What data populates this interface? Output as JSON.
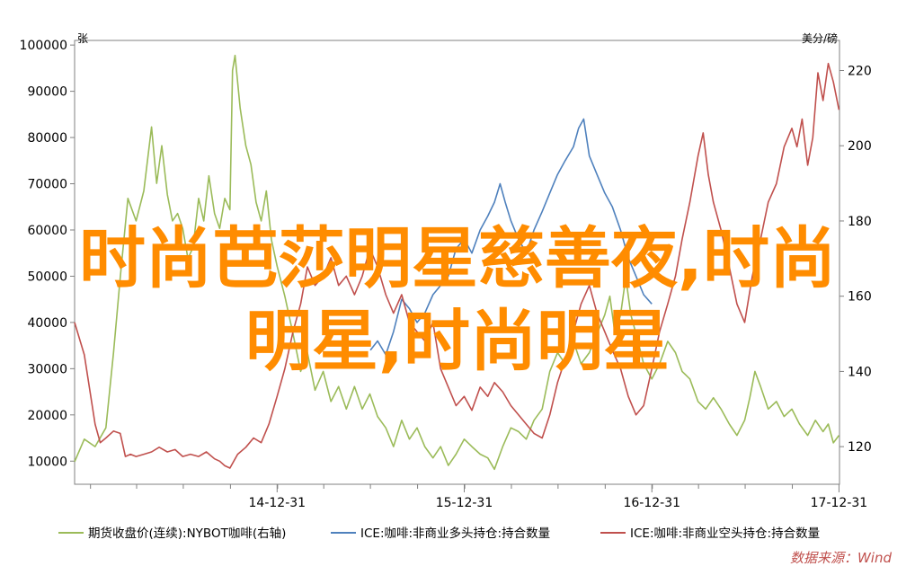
{
  "overlay": {
    "line1": "时尚芭莎明星慈善夜,时尚",
    "line2": "明星,时尚明星"
  },
  "source": "数据来源：Wind",
  "colors": {
    "green": "#9bbb59",
    "blue": "#4f81bd",
    "red": "#c0504d",
    "overlay": "#ff8c00",
    "source": "#c0504d"
  },
  "chart_data": {
    "type": "line",
    "title": "",
    "left_axis": {
      "unit": "张",
      "ticks": [
        "100000",
        "90000",
        "80000",
        "70000",
        "60000",
        "50000",
        "40000",
        "30000",
        "20000",
        "10000"
      ],
      "range": [
        5000,
        101000
      ]
    },
    "right_axis": {
      "unit": "美分/磅",
      "ticks": [
        "220",
        "200",
        "180",
        "160",
        "140",
        "120"
      ],
      "range": [
        110,
        228
      ]
    },
    "x_axis": {
      "tick_labels": [
        "14-12-31",
        "15-12-31",
        "16-12-31",
        "17-12-31"
      ],
      "start": "2013-12-01",
      "end": "2018-01-01"
    },
    "legend_position": "bottom",
    "grid": false,
    "series": [
      {
        "name": "期货收盘价(连续):NYBOT咖啡(右轴)",
        "axis": "right",
        "color": "#9bbb59",
        "points": [
          [
            "2013-12-01",
            116
          ],
          [
            "2013-12-20",
            122
          ],
          [
            "2014-01-10",
            120
          ],
          [
            "2014-01-31",
            125
          ],
          [
            "2014-02-15",
            145
          ],
          [
            "2014-02-28",
            165
          ],
          [
            "2014-03-15",
            186
          ],
          [
            "2014-03-31",
            180
          ],
          [
            "2014-04-15",
            188
          ],
          [
            "2014-04-30",
            205
          ],
          [
            "2014-05-10",
            190
          ],
          [
            "2014-05-20",
            200
          ],
          [
            "2014-05-31",
            187
          ],
          [
            "2014-06-10",
            180
          ],
          [
            "2014-06-20",
            182
          ],
          [
            "2014-06-30",
            178
          ],
          [
            "2014-07-10",
            170
          ],
          [
            "2014-07-20",
            173
          ],
          [
            "2014-07-31",
            186
          ],
          [
            "2014-08-10",
            180
          ],
          [
            "2014-08-20",
            192
          ],
          [
            "2014-08-31",
            182
          ],
          [
            "2014-09-10",
            178
          ],
          [
            "2014-09-20",
            186
          ],
          [
            "2014-09-30",
            183
          ],
          [
            "2014-10-05",
            220
          ],
          [
            "2014-10-10",
            224
          ],
          [
            "2014-10-20",
            210
          ],
          [
            "2014-10-31",
            200
          ],
          [
            "2014-11-10",
            195
          ],
          [
            "2014-11-20",
            185
          ],
          [
            "2014-11-30",
            180
          ],
          [
            "2014-12-10",
            188
          ],
          [
            "2014-12-20",
            175
          ],
          [
            "2014-12-31",
            168
          ],
          [
            "2015-01-15",
            160
          ],
          [
            "2015-01-31",
            150
          ],
          [
            "2015-02-15",
            140
          ],
          [
            "2015-02-28",
            145
          ],
          [
            "2015-03-15",
            135
          ],
          [
            "2015-03-31",
            140
          ],
          [
            "2015-04-15",
            132
          ],
          [
            "2015-04-30",
            136
          ],
          [
            "2015-05-15",
            130
          ],
          [
            "2015-05-31",
            136
          ],
          [
            "2015-06-15",
            130
          ],
          [
            "2015-06-30",
            134
          ],
          [
            "2015-07-15",
            128
          ],
          [
            "2015-07-31",
            125
          ],
          [
            "2015-08-15",
            120
          ],
          [
            "2015-08-31",
            127
          ],
          [
            "2015-09-15",
            122
          ],
          [
            "2015-09-30",
            125
          ],
          [
            "2015-10-15",
            120
          ],
          [
            "2015-10-31",
            117
          ],
          [
            "2015-11-15",
            120
          ],
          [
            "2015-11-30",
            115
          ],
          [
            "2015-12-15",
            118
          ],
          [
            "2015-12-31",
            122
          ],
          [
            "2016-01-15",
            120
          ],
          [
            "2016-01-31",
            118
          ],
          [
            "2016-02-15",
            117
          ],
          [
            "2016-02-28",
            114
          ],
          [
            "2016-03-15",
            120
          ],
          [
            "2016-03-31",
            125
          ],
          [
            "2016-04-15",
            124
          ],
          [
            "2016-04-30",
            122
          ],
          [
            "2016-05-15",
            127
          ],
          [
            "2016-05-31",
            130
          ],
          [
            "2016-06-15",
            140
          ],
          [
            "2016-06-30",
            145
          ],
          [
            "2016-07-15",
            142
          ],
          [
            "2016-07-31",
            148
          ],
          [
            "2016-08-15",
            142
          ],
          [
            "2016-08-31",
            145
          ],
          [
            "2016-09-15",
            150
          ],
          [
            "2016-09-30",
            155
          ],
          [
            "2016-10-10",
            160
          ],
          [
            "2016-10-20",
            150
          ],
          [
            "2016-10-31",
            155
          ],
          [
            "2016-11-10",
            165
          ],
          [
            "2016-11-20",
            155
          ],
          [
            "2016-11-30",
            150
          ],
          [
            "2016-12-15",
            142
          ],
          [
            "2016-12-31",
            138
          ],
          [
            "2017-01-15",
            142
          ],
          [
            "2017-01-31",
            148
          ],
          [
            "2017-02-15",
            145
          ],
          [
            "2017-02-28",
            140
          ],
          [
            "2017-03-15",
            138
          ],
          [
            "2017-03-31",
            132
          ],
          [
            "2017-04-15",
            130
          ],
          [
            "2017-04-30",
            133
          ],
          [
            "2017-05-15",
            130
          ],
          [
            "2017-05-31",
            126
          ],
          [
            "2017-06-15",
            123
          ],
          [
            "2017-06-30",
            127
          ],
          [
            "2017-07-10",
            133
          ],
          [
            "2017-07-20",
            140
          ],
          [
            "2017-07-31",
            136
          ],
          [
            "2017-08-15",
            130
          ],
          [
            "2017-08-31",
            132
          ],
          [
            "2017-09-15",
            128
          ],
          [
            "2017-09-30",
            130
          ],
          [
            "2017-10-15",
            126
          ],
          [
            "2017-10-31",
            123
          ],
          [
            "2017-11-15",
            127
          ],
          [
            "2017-11-30",
            124
          ],
          [
            "2017-12-10",
            126
          ],
          [
            "2017-12-20",
            121
          ],
          [
            "2017-12-31",
            123
          ]
        ]
      },
      {
        "name": "ICE:咖啡:非商业多头持仓:持合数量",
        "axis": "left",
        "color": "#4f81bd",
        "points": [
          [
            "2015-07-01",
            34000
          ],
          [
            "2015-07-15",
            36000
          ],
          [
            "2015-07-31",
            33000
          ],
          [
            "2015-08-15",
            38000
          ],
          [
            "2015-08-31",
            45000
          ],
          [
            "2015-09-15",
            43000
          ],
          [
            "2015-09-30",
            40000
          ],
          [
            "2015-10-15",
            42000
          ],
          [
            "2015-10-31",
            46000
          ],
          [
            "2015-11-15",
            48000
          ],
          [
            "2015-11-30",
            50000
          ],
          [
            "2015-12-15",
            56000
          ],
          [
            "2015-12-31",
            58000
          ],
          [
            "2016-01-15",
            55000
          ],
          [
            "2016-01-31",
            60000
          ],
          [
            "2016-02-15",
            63000
          ],
          [
            "2016-02-28",
            66000
          ],
          [
            "2016-03-10",
            70000
          ],
          [
            "2016-03-20",
            66000
          ],
          [
            "2016-03-31",
            62000
          ],
          [
            "2016-04-15",
            58000
          ],
          [
            "2016-04-30",
            55000
          ],
          [
            "2016-05-15",
            60000
          ],
          [
            "2016-05-31",
            64000
          ],
          [
            "2016-06-15",
            68000
          ],
          [
            "2016-06-30",
            72000
          ],
          [
            "2016-07-15",
            75000
          ],
          [
            "2016-07-31",
            78000
          ],
          [
            "2016-08-10",
            82000
          ],
          [
            "2016-08-20",
            84000
          ],
          [
            "2016-08-31",
            76000
          ],
          [
            "2016-09-15",
            72000
          ],
          [
            "2016-09-30",
            68000
          ],
          [
            "2016-10-15",
            65000
          ],
          [
            "2016-10-31",
            60000
          ],
          [
            "2016-11-15",
            54000
          ],
          [
            "2016-11-30",
            50000
          ],
          [
            "2016-12-15",
            46000
          ],
          [
            "2016-12-31",
            44000
          ]
        ]
      },
      {
        "name": "ICE:咖啡:非商业空头持仓:持合数量",
        "axis": "left",
        "color": "#c0504d",
        "points": [
          [
            "2013-12-01",
            40000
          ],
          [
            "2013-12-20",
            33000
          ],
          [
            "2014-01-10",
            18000
          ],
          [
            "2014-01-20",
            14000
          ],
          [
            "2014-01-31",
            15000
          ],
          [
            "2014-02-15",
            16500
          ],
          [
            "2014-02-28",
            16000
          ],
          [
            "2014-03-10",
            11000
          ],
          [
            "2014-03-20",
            11500
          ],
          [
            "2014-03-31",
            11000
          ],
          [
            "2014-04-15",
            11500
          ],
          [
            "2014-04-30",
            12000
          ],
          [
            "2014-05-15",
            13000
          ],
          [
            "2014-05-31",
            12000
          ],
          [
            "2014-06-15",
            12500
          ],
          [
            "2014-06-30",
            11000
          ],
          [
            "2014-07-15",
            11500
          ],
          [
            "2014-07-31",
            11000
          ],
          [
            "2014-08-15",
            12000
          ],
          [
            "2014-08-31",
            10500
          ],
          [
            "2014-09-10",
            10000
          ],
          [
            "2014-09-20",
            9000
          ],
          [
            "2014-09-30",
            8500
          ],
          [
            "2014-10-15",
            11500
          ],
          [
            "2014-10-31",
            13000
          ],
          [
            "2014-11-15",
            15000
          ],
          [
            "2014-11-30",
            14000
          ],
          [
            "2014-12-15",
            18000
          ],
          [
            "2014-12-31",
            24000
          ],
          [
            "2015-01-15",
            30000
          ],
          [
            "2015-01-31",
            38000
          ],
          [
            "2015-02-15",
            44000
          ],
          [
            "2015-02-28",
            52000
          ],
          [
            "2015-03-15",
            48000
          ],
          [
            "2015-03-31",
            50000
          ],
          [
            "2015-04-15",
            54000
          ],
          [
            "2015-04-30",
            48000
          ],
          [
            "2015-05-15",
            50000
          ],
          [
            "2015-05-31",
            46000
          ],
          [
            "2015-06-15",
            50000
          ],
          [
            "2015-06-30",
            56000
          ],
          [
            "2015-07-15",
            52000
          ],
          [
            "2015-07-31",
            46000
          ],
          [
            "2015-08-15",
            42000
          ],
          [
            "2015-08-31",
            46000
          ],
          [
            "2015-09-15",
            40000
          ],
          [
            "2015-09-30",
            38000
          ],
          [
            "2015-10-15",
            36000
          ],
          [
            "2015-10-31",
            40000
          ],
          [
            "2015-11-15",
            30000
          ],
          [
            "2015-11-30",
            26000
          ],
          [
            "2015-12-15",
            22000
          ],
          [
            "2015-12-31",
            24000
          ],
          [
            "2016-01-15",
            21000
          ],
          [
            "2016-01-31",
            26000
          ],
          [
            "2016-02-15",
            24000
          ],
          [
            "2016-02-28",
            27000
          ],
          [
            "2016-03-15",
            25000
          ],
          [
            "2016-03-31",
            22000
          ],
          [
            "2016-04-15",
            20000
          ],
          [
            "2016-04-30",
            18000
          ],
          [
            "2016-05-15",
            16000
          ],
          [
            "2016-05-31",
            15000
          ],
          [
            "2016-06-15",
            20000
          ],
          [
            "2016-06-30",
            27000
          ],
          [
            "2016-07-15",
            32000
          ],
          [
            "2016-07-31",
            38000
          ],
          [
            "2016-08-15",
            44000
          ],
          [
            "2016-08-31",
            48000
          ],
          [
            "2016-09-15",
            42000
          ],
          [
            "2016-09-30",
            38000
          ],
          [
            "2016-10-15",
            34000
          ],
          [
            "2016-10-31",
            30000
          ],
          [
            "2016-11-15",
            24000
          ],
          [
            "2016-11-30",
            20000
          ],
          [
            "2016-12-15",
            22000
          ],
          [
            "2016-12-31",
            30000
          ],
          [
            "2017-01-15",
            38000
          ],
          [
            "2017-01-31",
            44000
          ],
          [
            "2017-02-15",
            50000
          ],
          [
            "2017-02-28",
            58000
          ],
          [
            "2017-03-15",
            66000
          ],
          [
            "2017-03-31",
            76000
          ],
          [
            "2017-04-10",
            81000
          ],
          [
            "2017-04-20",
            72000
          ],
          [
            "2017-04-30",
            66000
          ],
          [
            "2017-05-15",
            60000
          ],
          [
            "2017-05-31",
            52000
          ],
          [
            "2017-06-15",
            44000
          ],
          [
            "2017-06-30",
            40000
          ],
          [
            "2017-07-15",
            50000
          ],
          [
            "2017-07-31",
            58000
          ],
          [
            "2017-08-15",
            66000
          ],
          [
            "2017-08-31",
            70000
          ],
          [
            "2017-09-15",
            78000
          ],
          [
            "2017-09-30",
            82000
          ],
          [
            "2017-10-10",
            78000
          ],
          [
            "2017-10-20",
            84000
          ],
          [
            "2017-10-31",
            74000
          ],
          [
            "2017-11-10",
            80000
          ],
          [
            "2017-11-20",
            94000
          ],
          [
            "2017-11-30",
            88000
          ],
          [
            "2017-12-10",
            96000
          ],
          [
            "2017-12-20",
            92000
          ],
          [
            "2017-12-31",
            86000
          ]
        ]
      }
    ]
  }
}
